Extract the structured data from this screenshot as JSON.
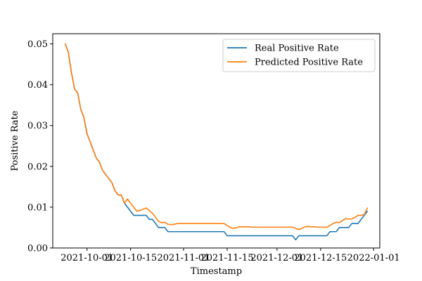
{
  "chart_data": {
    "type": "line",
    "title": "",
    "xlabel": "Timestamp",
    "ylabel": "Positive Rate",
    "x_start": "2021-09-24",
    "x_end": "2021-12-30",
    "xlim": [
      "2021-09-20",
      "2022-01-03"
    ],
    "ylim": [
      0.0,
      0.0525
    ],
    "x_ticks": [
      {
        "date": "2021-10-01",
        "label": "2021-10-01"
      },
      {
        "date": "2021-10-15",
        "label": "2021-10-15"
      },
      {
        "date": "2021-11-01",
        "label": "2021-11-01"
      },
      {
        "date": "2021-11-15",
        "label": "2021-11-15"
      },
      {
        "date": "2021-12-01",
        "label": "2021-12-01"
      },
      {
        "date": "2021-12-15",
        "label": "2021-12-15"
      },
      {
        "date": "2022-01-01",
        "label": "2022-01-01"
      }
    ],
    "y_ticks": [
      {
        "value": 0.0,
        "label": "0.00"
      },
      {
        "value": 0.01,
        "label": "0.01"
      },
      {
        "value": 0.02,
        "label": "0.02"
      },
      {
        "value": 0.03,
        "label": "0.03"
      },
      {
        "value": 0.04,
        "label": "0.04"
      },
      {
        "value": 0.05,
        "label": "0.05"
      }
    ],
    "grid": false,
    "legend_position": "top-right",
    "series": [
      {
        "name": "Real Positive Rate",
        "color": "#1f77b4",
        "values": [
          0.05,
          0.048,
          0.043,
          0.039,
          0.038,
          0.034,
          0.032,
          0.028,
          0.026,
          0.024,
          0.022,
          0.021,
          0.019,
          0.018,
          0.017,
          0.016,
          0.014,
          0.013,
          0.013,
          0.011,
          0.01,
          0.009,
          0.008,
          0.008,
          0.008,
          0.008,
          0.008,
          0.007,
          0.007,
          0.006,
          0.005,
          0.005,
          0.005,
          0.004,
          0.004,
          0.004,
          0.004,
          0.004,
          0.004,
          0.004,
          0.004,
          0.004,
          0.004,
          0.004,
          0.004,
          0.004,
          0.004,
          0.004,
          0.004,
          0.004,
          0.004,
          0.004,
          0.003,
          0.003,
          0.003,
          0.003,
          0.003,
          0.003,
          0.003,
          0.003,
          0.003,
          0.003,
          0.003,
          0.003,
          0.003,
          0.003,
          0.003,
          0.003,
          0.003,
          0.003,
          0.003,
          0.003,
          0.003,
          0.003,
          0.002,
          0.003,
          0.003,
          0.003,
          0.003,
          0.003,
          0.003,
          0.003,
          0.003,
          0.003,
          0.003,
          0.004,
          0.004,
          0.004,
          0.005,
          0.005,
          0.005,
          0.005,
          0.006,
          0.006,
          0.006,
          0.007,
          0.008,
          0.009
        ]
      },
      {
        "name": "Predicted Positive Rate",
        "color": "#ff7f0e",
        "values": [
          0.05,
          0.048,
          0.043,
          0.039,
          0.038,
          0.034,
          0.032,
          0.028,
          0.026,
          0.024,
          0.022,
          0.021,
          0.019,
          0.018,
          0.017,
          0.016,
          0.014,
          0.013,
          0.013,
          0.011,
          0.012,
          0.011,
          0.01,
          0.009,
          0.0092,
          0.0095,
          0.0098,
          0.0092,
          0.0085,
          0.0075,
          0.0065,
          0.0062,
          0.0063,
          0.0058,
          0.0057,
          0.0058,
          0.006,
          0.006,
          0.006,
          0.006,
          0.006,
          0.006,
          0.006,
          0.006,
          0.006,
          0.006,
          0.006,
          0.006,
          0.006,
          0.006,
          0.006,
          0.006,
          0.0055,
          0.005,
          0.0048,
          0.005,
          0.0052,
          0.0052,
          0.0052,
          0.0052,
          0.0051,
          0.0051,
          0.0051,
          0.0051,
          0.0051,
          0.0051,
          0.0051,
          0.0051,
          0.0051,
          0.0051,
          0.0051,
          0.0051,
          0.0051,
          0.0051,
          0.0048,
          0.0045,
          0.0048,
          0.0052,
          0.0053,
          0.0052,
          0.0052,
          0.0051,
          0.0051,
          0.0051,
          0.0051,
          0.0055,
          0.006,
          0.0063,
          0.0062,
          0.0067,
          0.0072,
          0.0071,
          0.0071,
          0.0075,
          0.008,
          0.008,
          0.0082,
          0.0098
        ]
      }
    ]
  }
}
